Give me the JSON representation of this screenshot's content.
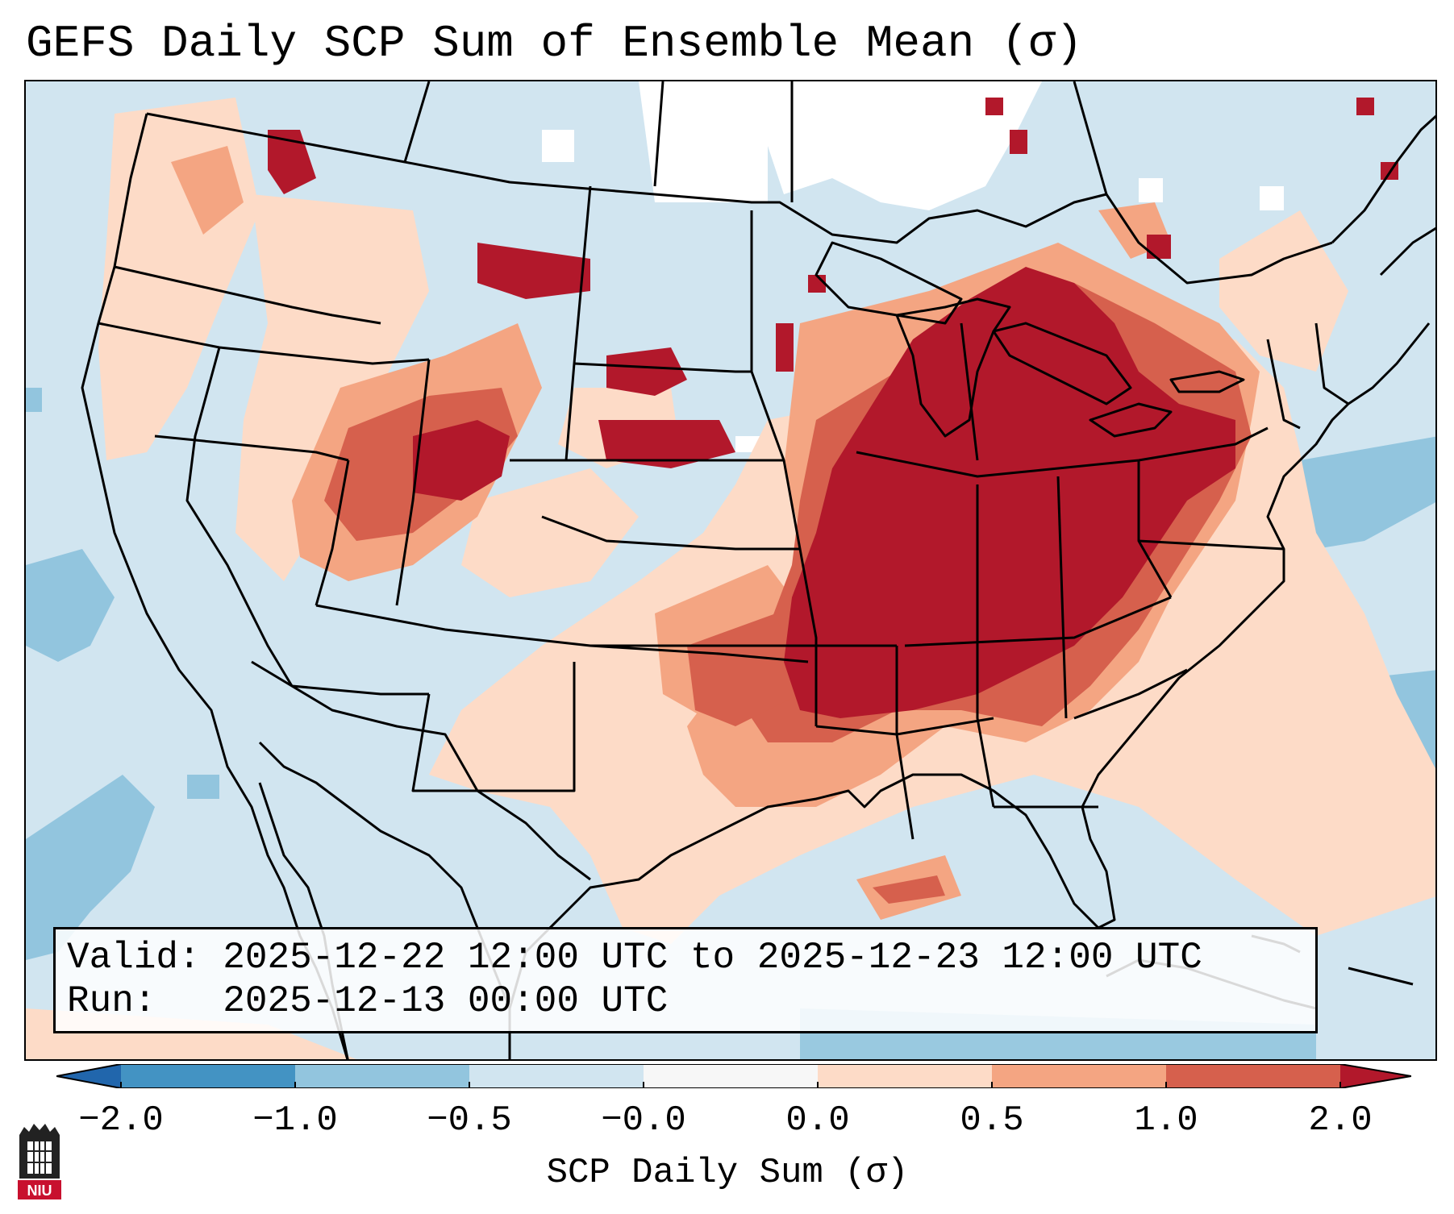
{
  "title": "GEFS Daily SCP Sum of Ensemble Mean (σ)",
  "info_box": {
    "valid_label": "Valid:",
    "valid_value": "2025-12-22 12:00 UTC to 2025-12-23 12:00 UTC",
    "run_label": "Run:",
    "run_value": "2025-12-13 00:00 UTC"
  },
  "colorbar": {
    "label": "SCP Daily Sum (σ)",
    "ticks": [
      "−2.0",
      "−1.0",
      "−0.5",
      "−0.0",
      "0.0",
      "0.5",
      "1.0",
      "2.0"
    ],
    "bins": [
      {
        "range": "< -2.0",
        "color": "#2166ac"
      },
      {
        "range": "-2.0 to -1.0",
        "color": "#4393c3"
      },
      {
        "range": "-1.0 to -0.5",
        "color": "#92c5de"
      },
      {
        "range": "-0.5 to -0.0",
        "color": "#d1e5f0"
      },
      {
        "range": "-0.0 to 0.0",
        "color": "#f7f7f7"
      },
      {
        "range": "0.0 to 0.5",
        "color": "#fddbc7"
      },
      {
        "range": "0.5 to 1.0",
        "color": "#f4a582"
      },
      {
        "range": "1.0 to 2.0",
        "color": "#d6604d"
      },
      {
        "range": "> 2.0",
        "color": "#b2182b"
      }
    ]
  },
  "logo": {
    "text": "NIU"
  },
  "colors": {
    "background_blue": "#d1e5f0",
    "light_pink": "#fddbc7",
    "salmon": "#f4a582",
    "red": "#d6604d",
    "dark_red": "#b2182b",
    "mid_blue": "#92c5de",
    "white": "#ffffff"
  }
}
